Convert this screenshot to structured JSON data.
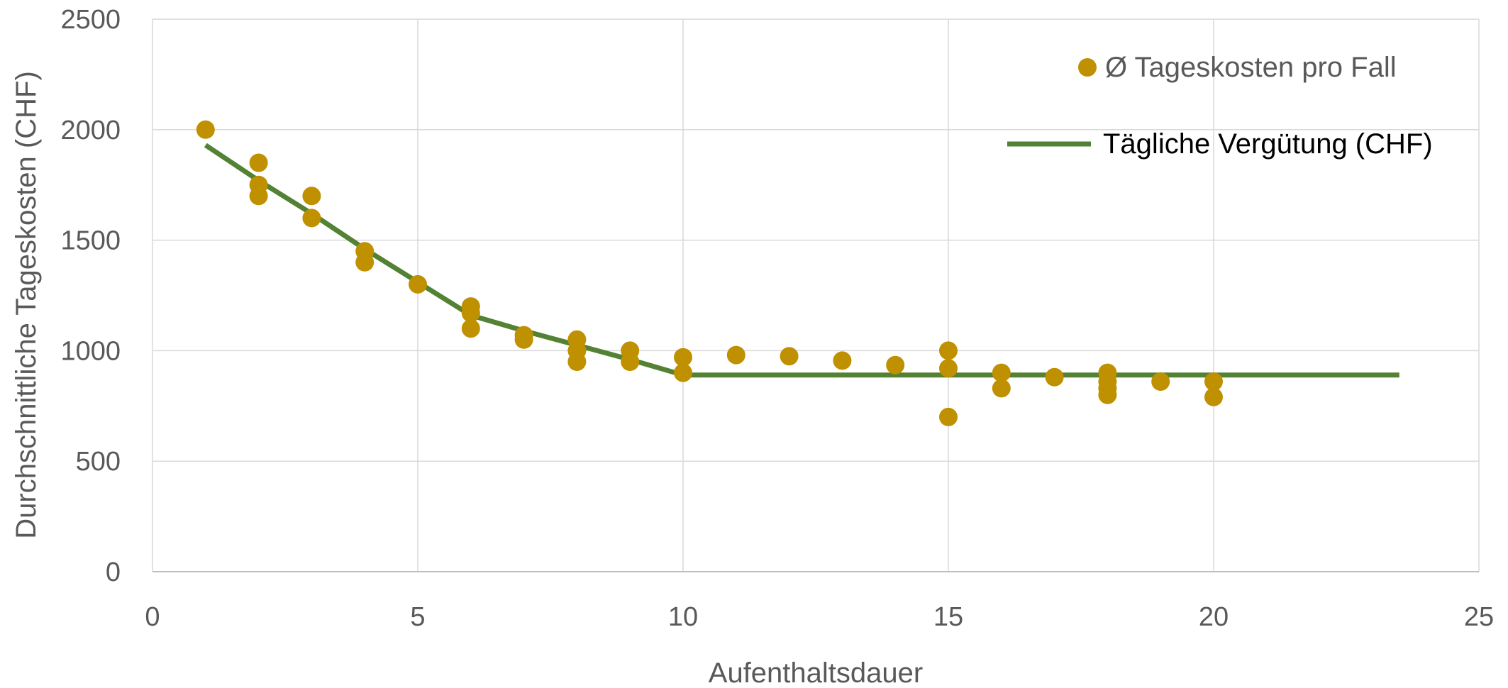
{
  "chart_data": {
    "type": "scatter",
    "x_axis": {
      "label": "Aufenthaltsdauer",
      "range": [
        0,
        25
      ],
      "ticks": [
        0,
        5,
        10,
        15,
        20,
        25
      ],
      "tick_labels": [
        "0",
        "5",
        "10",
        "15",
        "20",
        "25"
      ]
    },
    "y_axis": {
      "label": "Durchschnittliche Tageskosten (CHF)",
      "range": [
        0,
        2500
      ],
      "ticks": [
        0,
        500,
        1000,
        1500,
        2000,
        2500
      ],
      "tick_labels": [
        "0",
        "500",
        "1000",
        "1500",
        "2000",
        "2500"
      ]
    },
    "grid": true,
    "legend_position": "top-right",
    "series": [
      {
        "name": "Ø Tageskosten pro Fall",
        "kind": "scatter",
        "color": "#bf9000",
        "points": [
          {
            "x": 1,
            "y": 2000
          },
          {
            "x": 2,
            "y": 1850
          },
          {
            "x": 2,
            "y": 1750
          },
          {
            "x": 2,
            "y": 1700
          },
          {
            "x": 3,
            "y": 1700
          },
          {
            "x": 3,
            "y": 1600
          },
          {
            "x": 4,
            "y": 1450
          },
          {
            "x": 4,
            "y": 1400
          },
          {
            "x": 5,
            "y": 1300
          },
          {
            "x": 6,
            "y": 1200
          },
          {
            "x": 6,
            "y": 1170
          },
          {
            "x": 6,
            "y": 1100
          },
          {
            "x": 7,
            "y": 1070
          },
          {
            "x": 7,
            "y": 1050
          },
          {
            "x": 8,
            "y": 1050
          },
          {
            "x": 8,
            "y": 1000
          },
          {
            "x": 8,
            "y": 950
          },
          {
            "x": 9,
            "y": 1000
          },
          {
            "x": 9,
            "y": 950
          },
          {
            "x": 10,
            "y": 970
          },
          {
            "x": 10,
            "y": 900
          },
          {
            "x": 11,
            "y": 980
          },
          {
            "x": 12,
            "y": 975
          },
          {
            "x": 13,
            "y": 955
          },
          {
            "x": 14,
            "y": 935
          },
          {
            "x": 15,
            "y": 1000
          },
          {
            "x": 15,
            "y": 920
          },
          {
            "x": 15,
            "y": 700
          },
          {
            "x": 16,
            "y": 900
          },
          {
            "x": 16,
            "y": 830
          },
          {
            "x": 17,
            "y": 880
          },
          {
            "x": 18,
            "y": 900
          },
          {
            "x": 18,
            "y": 860
          },
          {
            "x": 18,
            "y": 830
          },
          {
            "x": 18,
            "y": 800
          },
          {
            "x": 19,
            "y": 860
          },
          {
            "x": 20,
            "y": 860
          },
          {
            "x": 20,
            "y": 790
          }
        ]
      },
      {
        "name": "Tägliche Vergütung (CHF)",
        "kind": "line",
        "color": "#548235",
        "points": [
          {
            "x": 1,
            "y": 1930
          },
          {
            "x": 2,
            "y": 1770
          },
          {
            "x": 3,
            "y": 1620
          },
          {
            "x": 4,
            "y": 1460
          },
          {
            "x": 5,
            "y": 1310
          },
          {
            "x": 6,
            "y": 1160
          },
          {
            "x": 7,
            "y": 1090
          },
          {
            "x": 8,
            "y": 1025
          },
          {
            "x": 9,
            "y": 960
          },
          {
            "x": 10,
            "y": 890
          },
          {
            "x": 23.5,
            "y": 890
          }
        ]
      }
    ]
  }
}
